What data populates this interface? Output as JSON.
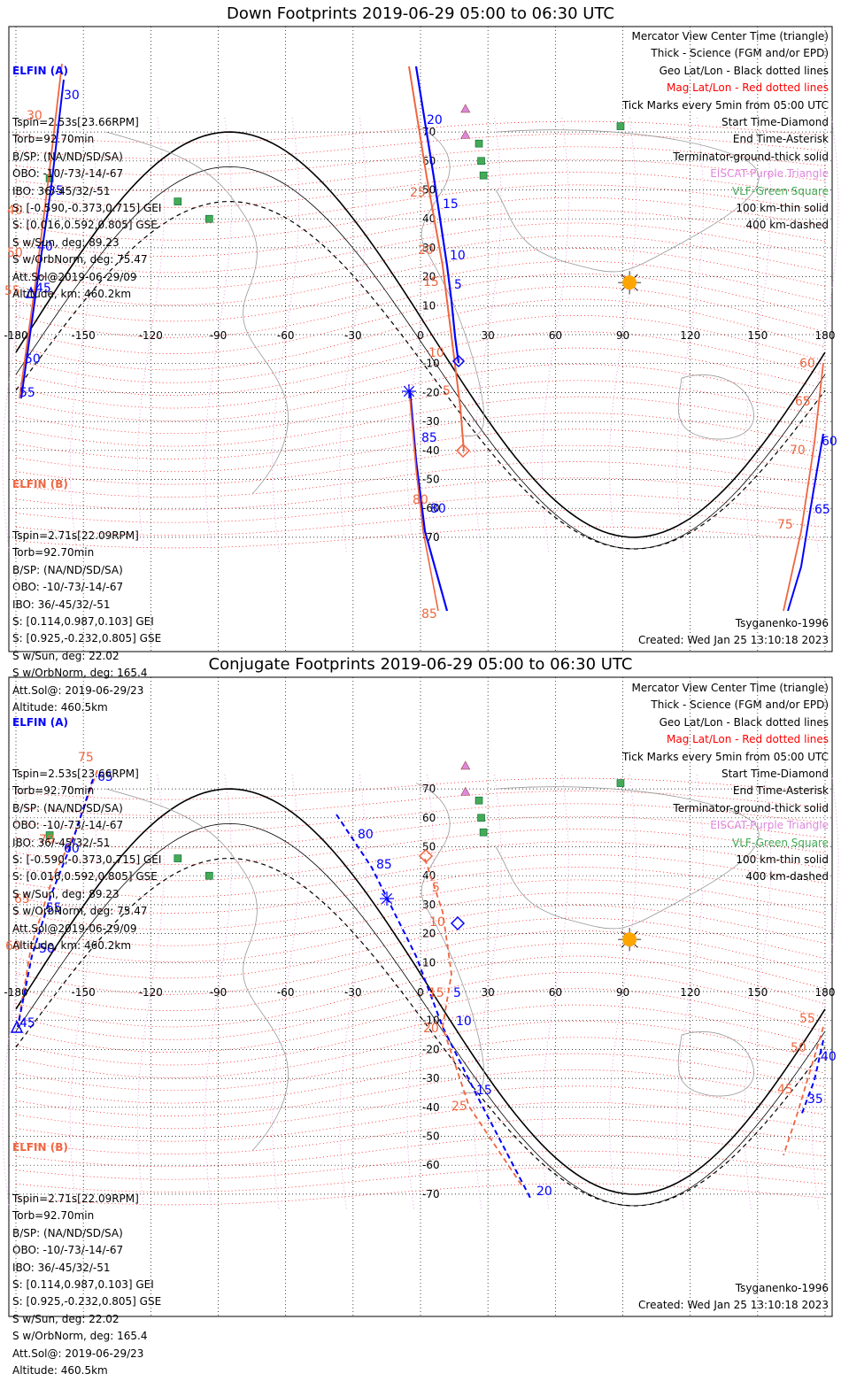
{
  "panels": [
    {
      "title": "Down Footprints 2019-06-29 05:00 to 06:30 UTC",
      "ela": {
        "name": "ELFIN (A)",
        "lines": [
          "Tspin=2.53s[23.66RPM]",
          "Torb=92.70min",
          "B/SP: (NA/ND/SD/SA)",
          "OBO: -10/-73/-14/-67",
          "IBO: 36/-45/32/-51",
          "S: [-0.590,-0.373,0.715] GEI",
          "S: [0.016,0.592,0.805] GSE",
          "S w/Sun, deg: 89.23",
          "S w/OrbNorm, deg: 75.47",
          "Att.Sol@2019-06-29/09",
          "Altitude, km: 460.2km"
        ]
      },
      "elb": {
        "name": "ELFIN (B)",
        "lines": [
          "Tspin=2.71s[22.09RPM]",
          "Torb=92.70min",
          "B/SP: (NA/ND/SD/SA)",
          "OBO: -10/-73/-14/-67",
          "IBO: 36/-45/32/-51",
          "S: [0.114,0.987,0.103] GEI",
          "S: [0.925,-0.232,0.805] GSE",
          "S w/Sun, deg: 22.02",
          "S w/OrbNorm, deg: 165.4",
          "Att.Sol@: 2019-06-29/23",
          "Altitude: 460.5km"
        ]
      },
      "model": "Tsyganenko-1996",
      "created": "Created: Wed Jan 25 13:10:18 2023",
      "ela_tracks": [
        {
          "label_positions": "A-left",
          "ticks": [
            "30",
            "35",
            "40",
            "45",
            "50",
            "55"
          ]
        },
        {
          "ticks": [
            "20",
            "15",
            "10",
            "5"
          ]
        },
        {
          "ticks": [
            "85",
            "80"
          ]
        },
        {
          "ticks": [
            "60",
            "65"
          ]
        }
      ],
      "elb_ticks": [
        "30",
        "35",
        "40",
        "45",
        "50",
        "55",
        "25",
        "20",
        "15",
        "10",
        "5",
        "80",
        "85",
        "60",
        "65",
        "70",
        "75"
      ]
    },
    {
      "title": "Conjugate Footprints 2019-06-29 05:00 to 06:30 UTC",
      "ela": {
        "name": "ELFIN (A)",
        "lines": [
          "Tspin=2.53s[23.66RPM]",
          "Torb=92.70min",
          "B/SP: (NA/ND/SD/SA)",
          "OBO: -10/-73/-14/-67",
          "IBO: 36/-45/32/-51",
          "S: [-0.590,-0.373,0.715] GEI",
          "S: [0.016,0.592,0.805] GSE",
          "S w/Sun, deg: 89.23",
          "S w/OrbNorm, deg: 75.47",
          "Att.Sol@2019-06-29/09",
          "Altitude, km: 460.2km"
        ]
      },
      "elb": {
        "name": "ELFIN (B)",
        "lines": [
          "Tspin=2.71s[22.09RPM]",
          "Torb=92.70min",
          "B/SP: (NA/ND/SD/SA)",
          "OBO: -10/-73/-14/-67",
          "IBO: 36/-45/32/-51",
          "S: [0.114,0.987,0.103] GEI",
          "S: [0.925,-0.232,0.805] GSE",
          "S w/Sun, deg: 22.02",
          "S w/OrbNorm, deg: 165.4",
          "Att.Sol@: 2019-06-29/23",
          "Altitude: 460.5km"
        ]
      },
      "model": "Tsyganenko-1996",
      "created": "Created: Wed Jan 25 13:10:18 2023"
    }
  ],
  "legend": [
    {
      "text": "Mercator View Center Time (triangle)",
      "color": "#000000"
    },
    {
      "text": "Thick - Science (FGM and/or EPD)",
      "color": "#000000"
    },
    {
      "text": "Geo Lat/Lon - Black dotted lines",
      "color": "#000000"
    },
    {
      "text": "Mag Lat/Lon - Red dotted lines",
      "color": "#ff0000"
    },
    {
      "text": "Tick Marks every 5min from 05:00 UTC",
      "color": "#000000"
    },
    {
      "text": "Start Time-Diamond",
      "color": "#000000"
    },
    {
      "text": "End Time-Asterisk",
      "color": "#000000"
    },
    {
      "text": "Terminator-ground-thick solid",
      "color": "#000000"
    },
    {
      "text": "EISCAT-Purple Triangle",
      "color": "#dd88dd"
    },
    {
      "text": "VLF-Green Square",
      "color": "#44aa55"
    },
    {
      "text": "100 km-thin solid",
      "color": "#000000"
    },
    {
      "text": "400 km-dashed",
      "color": "#000000"
    }
  ],
  "lon_ticks": [
    "-180",
    "-150",
    "-120",
    "-90",
    "-60",
    "-30",
    "0",
    "30",
    "60",
    "90",
    "120",
    "150",
    "180"
  ],
  "lat_ticks": [
    "70",
    "60",
    "50",
    "40",
    "30",
    "20",
    "10",
    "0",
    "-10",
    "-20",
    "-30",
    "-40",
    "-50",
    "-60",
    "-70"
  ],
  "down_labels": {
    "a_left": [
      "30",
      "35",
      "40",
      "45",
      "50",
      "55"
    ],
    "a_mid": [
      "20",
      "15",
      "10",
      "5"
    ],
    "a_south": [
      "85",
      "80"
    ],
    "a_right": [
      "60",
      "65"
    ],
    "b_left": [
      "30",
      "40",
      "50",
      "55",
      "45"
    ],
    "b_mid": [
      "25",
      "20",
      "15",
      "10",
      "5"
    ],
    "b_south": [
      "80",
      "85"
    ],
    "b_right": [
      "60",
      "65",
      "70",
      "75"
    ]
  },
  "conj_labels": {
    "a_left": [
      "45",
      "50",
      "55",
      "60",
      "65"
    ],
    "a_mid": [
      "80",
      "85",
      "5",
      "10",
      "15",
      "20"
    ],
    "a_right": [
      "40",
      "35"
    ],
    "b_left": [
      "75",
      "70",
      "65",
      "60"
    ],
    "b_mid": [
      "5",
      "10",
      "15",
      "20",
      "25"
    ],
    "b_right": [
      "55",
      "50",
      "45"
    ]
  },
  "colors": {
    "ela": "#0000ff",
    "elb": "#ee6640",
    "geo_grid": "#000000",
    "mag_grid": "#ff0000",
    "eiscat": "#dd88dd",
    "vlf": "#44aa55",
    "sun": "#ffa500"
  }
}
